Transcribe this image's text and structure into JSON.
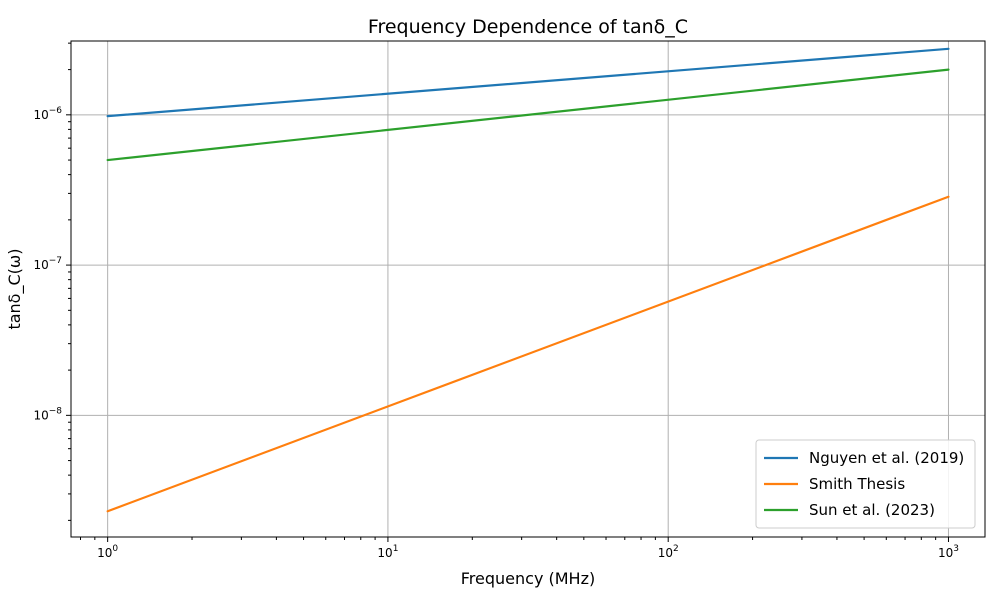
{
  "chart_data": {
    "type": "line",
    "title": "Frequency Dependence of tanδ_C",
    "xlabel": "Frequency (MHz)",
    "ylabel": "tanδ_C(ω)",
    "xscale": "log",
    "yscale": "log",
    "xlim": [
      0.74,
      1350
    ],
    "ylim": [
      1.55e-09,
      3.1e-06
    ],
    "grid": true,
    "legend_position": "lower right",
    "x_ticks": [
      {
        "value": 1,
        "base": "10",
        "exp": "0"
      },
      {
        "value": 10,
        "base": "10",
        "exp": "1"
      },
      {
        "value": 100,
        "base": "10",
        "exp": "2"
      },
      {
        "value": 1000,
        "base": "10",
        "exp": "3"
      }
    ],
    "y_ticks": [
      {
        "value": 1e-08,
        "base": "10",
        "exp": "−8"
      },
      {
        "value": 1e-07,
        "base": "10",
        "exp": "−7"
      },
      {
        "value": 1e-06,
        "base": "10",
        "exp": "−6"
      }
    ],
    "series": [
      {
        "name": "Nguyen et al. (2019)",
        "color": "#1f77b4",
        "x": [
          1,
          1000
        ],
        "y": [
          9.8e-07,
          2.75e-06
        ]
      },
      {
        "name": "Smith Thesis",
        "color": "#ff7f0e",
        "x": [
          1,
          1000
        ],
        "y": [
          2.3e-09,
          2.85e-07
        ]
      },
      {
        "name": "Sun et al. (2023)",
        "color": "#2ca02c",
        "x": [
          1,
          1000
        ],
        "y": [
          5e-07,
          2e-06
        ]
      }
    ]
  }
}
